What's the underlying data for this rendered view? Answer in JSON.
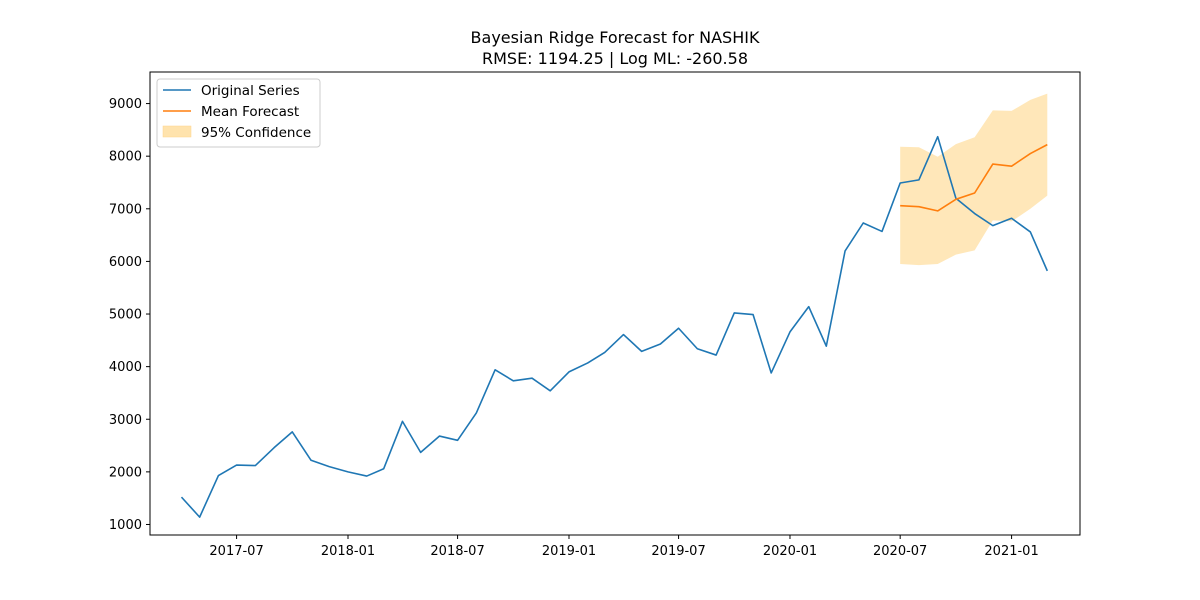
{
  "chart_data": {
    "type": "line",
    "title": "Bayesian Ridge Forecast for NASHIK",
    "subtitle": "RMSE: 1194.25 | Log ML: -260.58",
    "xlabel": "",
    "ylabel": "",
    "xlim": [
      "2017-02-08",
      "2021-04-24"
    ],
    "ylim": [
      800,
      9600
    ],
    "x_ticks": [
      "2017-07",
      "2018-01",
      "2018-07",
      "2019-01",
      "2019-07",
      "2020-01",
      "2020-07",
      "2021-01"
    ],
    "y_ticks": [
      1000,
      2000,
      3000,
      4000,
      5000,
      6000,
      7000,
      8000,
      9000
    ],
    "grid": false,
    "legend_position": "top-left",
    "colors": {
      "original": "#1f77b4",
      "forecast": "#ff7f0e",
      "confidence": "#ffe3ad"
    },
    "series": [
      {
        "name": "Original Series",
        "x": [
          "2017-04",
          "2017-05",
          "2017-06",
          "2017-07",
          "2017-08",
          "2017-09",
          "2017-10",
          "2017-11",
          "2017-12",
          "2018-01",
          "2018-02",
          "2018-03",
          "2018-04",
          "2018-05",
          "2018-06",
          "2018-07",
          "2018-08",
          "2018-09",
          "2018-10",
          "2018-11",
          "2018-12",
          "2019-01",
          "2019-02",
          "2019-03",
          "2019-04",
          "2019-05",
          "2019-06",
          "2019-07",
          "2019-08",
          "2019-09",
          "2019-10",
          "2019-11",
          "2019-12",
          "2020-01",
          "2020-02",
          "2020-03",
          "2020-04",
          "2020-05",
          "2020-06",
          "2020-07",
          "2020-08",
          "2020-09",
          "2020-10",
          "2020-11",
          "2020-12",
          "2021-01",
          "2021-02",
          "2021-03"
        ],
        "values": [
          1520,
          1140,
          1930,
          2130,
          2120,
          2460,
          2760,
          2220,
          2100,
          2000,
          1920,
          2060,
          2960,
          2370,
          2680,
          2600,
          3120,
          3940,
          3730,
          3780,
          3540,
          3900,
          4070,
          4270,
          4610,
          4290,
          4430,
          4730,
          4340,
          4220,
          5020,
          4990,
          3880,
          4660,
          5140,
          4390,
          6200,
          6730,
          6570,
          7490,
          7550,
          8370,
          7200,
          6910,
          6680,
          6820,
          6560,
          5820
        ]
      },
      {
        "name": "Mean Forecast",
        "x": [
          "2020-07",
          "2020-08",
          "2020-09",
          "2020-10",
          "2020-11",
          "2020-12",
          "2021-01",
          "2021-02",
          "2021-03"
        ],
        "values": [
          7060,
          7040,
          6960,
          7180,
          7300,
          7850,
          7810,
          8050,
          8220
        ]
      }
    ],
    "confidence_band": {
      "name": "95% Confidence",
      "x": [
        "2020-07",
        "2020-08",
        "2020-09",
        "2020-10",
        "2020-11",
        "2020-12",
        "2021-01",
        "2021-02",
        "2021-03"
      ],
      "lower": [
        5950,
        5930,
        5950,
        6130,
        6210,
        6780,
        6760,
        7000,
        7250
      ],
      "upper": [
        8180,
        8170,
        7990,
        8230,
        8360,
        8870,
        8860,
        9070,
        9190
      ]
    }
  }
}
